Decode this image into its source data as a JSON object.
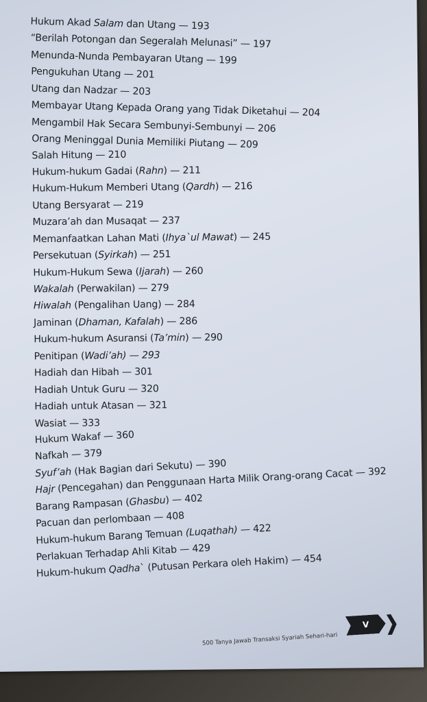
{
  "entries": [
    [
      {
        "t": "Hukum Akad "
      },
      {
        "t": "Salam",
        "i": true
      },
      {
        "t": " dan Utang — 193"
      }
    ],
    [
      {
        "t": "“Berilah Potongan dan Segeralah Melunasi” — 197"
      }
    ],
    [
      {
        "t": "Menunda-Nunda Pembayaran Utang — 199"
      }
    ],
    [
      {
        "t": "Pengukuhan Utang — 201"
      }
    ],
    [
      {
        "t": "Utang dan Nadzar — 203"
      }
    ],
    [
      {
        "t": "Membayar Utang Kepada Orang yang Tidak Diketahui — 204"
      }
    ],
    [
      {
        "t": "Mengambil Hak Secara Sembunyi-Sembunyi — 206"
      }
    ],
    [
      {
        "t": "Orang Meninggal Dunia Memiliki Piutang — 209"
      }
    ],
    [
      {
        "t": "Salah Hitung — 210"
      }
    ],
    [
      {
        "t": "Hukum-hukum Gadai ("
      },
      {
        "t": "Rahn",
        "i": true
      },
      {
        "t": ") — 211"
      }
    ],
    [
      {
        "t": "Hukum-Hukum Memberi Utang ("
      },
      {
        "t": "Qardh",
        "i": true
      },
      {
        "t": ") — 216"
      }
    ],
    [
      {
        "t": "Utang Bersyarat — 219"
      }
    ],
    [
      {
        "t": "Muzara’ah dan Musaqat — 237"
      }
    ],
    [
      {
        "t": "Memanfaatkan Lahan Mati ("
      },
      {
        "t": "Ihya`ul Mawat",
        "i": true
      },
      {
        "t": ") — 245"
      }
    ],
    [
      {
        "t": "Persekutuan ("
      },
      {
        "t": "Syirkah",
        "i": true
      },
      {
        "t": ") — 251"
      }
    ],
    [
      {
        "t": "Hukum-Hukum Sewa ("
      },
      {
        "t": "Ijarah",
        "i": true
      },
      {
        "t": ") — 260"
      }
    ],
    [
      {
        "t": "Wakalah",
        "i": true
      },
      {
        "t": " (Perwakilan) — 279"
      }
    ],
    [
      {
        "t": "Hiwalah",
        "i": true
      },
      {
        "t": " (Pengalihan Uang) — 284"
      }
    ],
    [
      {
        "t": "Jaminan ("
      },
      {
        "t": "Dhaman, Kafalah",
        "i": true
      },
      {
        "t": ") — 286"
      }
    ],
    [
      {
        "t": "Hukum-hukum Asuransi ("
      },
      {
        "t": "Ta’min",
        "i": true
      },
      {
        "t": ") — 290"
      }
    ],
    [
      {
        "t": "Penitipan ("
      },
      {
        "t": "Wadi’ah) — 293",
        "i": true
      }
    ],
    [
      {
        "t": "Hadiah dan Hibah — 301"
      }
    ],
    [
      {
        "t": "Hadiah Untuk Guru — 320"
      }
    ],
    [
      {
        "t": "Hadiah untuk Atasan — 321"
      }
    ],
    [
      {
        "t": "Wasiat — 333"
      }
    ],
    [
      {
        "t": "Hukum Wakaf — 360"
      }
    ],
    [
      {
        "t": "Nafkah — 379"
      }
    ],
    [
      {
        "t": "Syuf’ah",
        "i": true
      },
      {
        "t": " (Hak Bagian dari Sekutu) — 390"
      }
    ],
    [
      {
        "t": "Hajr",
        "i": true
      },
      {
        "t": " (Pencegahan) dan Penggunaan Harta Milik Orang-orang Cacat — 392"
      }
    ],
    [
      {
        "t": "Barang Rampasan ("
      },
      {
        "t": "Ghasbu",
        "i": true
      },
      {
        "t": ") — 402"
      }
    ],
    [
      {
        "t": "Pacuan dan perlombaan — 408"
      }
    ],
    [
      {
        "t": "Hukum-hukum Barang Temuan "
      },
      {
        "t": "(Luqathah)",
        "i": true
      },
      {
        "t": " — 422"
      }
    ],
    [
      {
        "t": "Perlakuan Terhadap Ahli Kitab — 429"
      }
    ],
    [
      {
        "t": "Hukum-hukum "
      },
      {
        "t": "Qadha",
        "i": true
      },
      {
        "t": "` (Putusan Perkara oleh Hakim) — 454"
      }
    ]
  ],
  "footer": {
    "book_title": "500 Tanya Jawab Transaksi Syariah Sehari-hari",
    "page_number": "V"
  }
}
